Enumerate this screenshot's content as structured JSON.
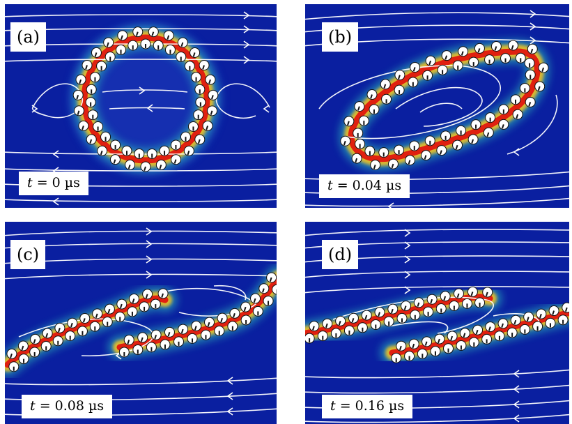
{
  "panels": [
    {
      "label": "(a)",
      "time": "t = 0 µs",
      "time_var": "t",
      "time_value": "= 0 µs",
      "shape": "ring"
    },
    {
      "label": "(b)",
      "time": "t = 0.04 µs",
      "time_var": "t",
      "time_value": "= 0.04 µs",
      "shape": "tilted-ellipse"
    },
    {
      "label": "(c)",
      "time": "t = 0.08 µs",
      "time_var": "t",
      "time_value": "= 0.08 µs",
      "shape": "two-strands"
    },
    {
      "label": "(d)",
      "time": "t = 0.16 µs",
      "time_var": "t",
      "time_value": "= 0.16 µs",
      "shape": "two-strands-flat"
    }
  ],
  "colors": {
    "background": "#0a1fa0",
    "glow_core": "#e02010",
    "glow_mid": "#f0c020",
    "glow_outer": "#30d0c0",
    "streamline": "#ffffff"
  }
}
